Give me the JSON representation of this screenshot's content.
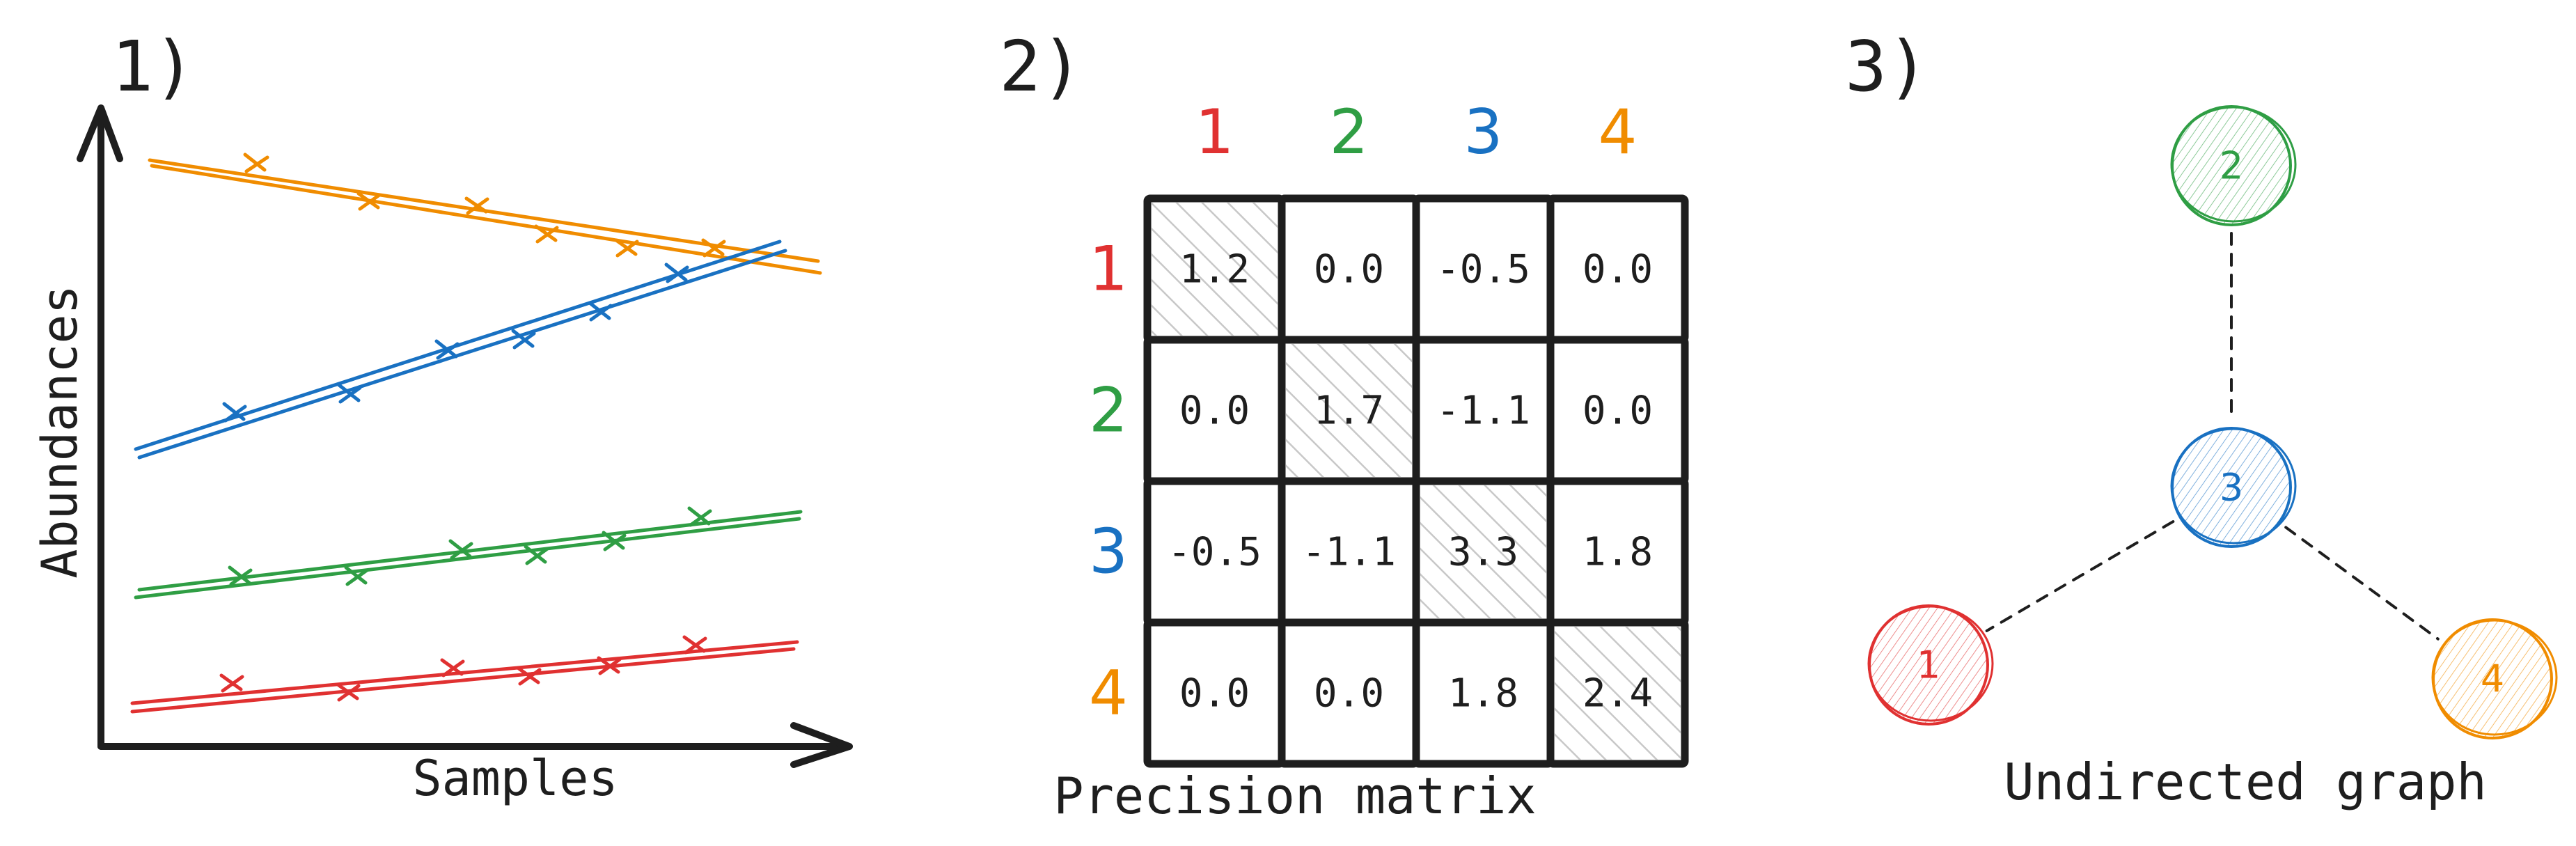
{
  "colors": {
    "1": "#e03131",
    "2": "#2f9e44",
    "3": "#1971c2",
    "4": "#f08c00",
    "ink": "#1e1e1e"
  },
  "panel1": {
    "label": "1)",
    "xlabel": "Samples",
    "ylabel": "Abundances"
  },
  "panel2": {
    "label": "2)",
    "caption": "Precision matrix",
    "headers": [
      "1",
      "2",
      "3",
      "4"
    ],
    "matrix": [
      [
        "1.2",
        "0.0",
        "-0.5",
        "0.0"
      ],
      [
        "0.0",
        "1.7",
        "-1.1",
        "0.0"
      ],
      [
        "-0.5",
        "-1.1",
        "3.3",
        "1.8"
      ],
      [
        "0.0",
        "0.0",
        "1.8",
        "2.4"
      ]
    ]
  },
  "panel3": {
    "label": "3)",
    "caption": "Undirected graph",
    "nodes": [
      {
        "id": "1",
        "color": "#e03131"
      },
      {
        "id": "2",
        "color": "#2f9e44"
      },
      {
        "id": "3",
        "color": "#1971c2"
      },
      {
        "id": "4",
        "color": "#f08c00"
      }
    ],
    "edges": [
      [
        "2",
        "3"
      ],
      [
        "3",
        "1"
      ],
      [
        "3",
        "4"
      ]
    ]
  }
}
